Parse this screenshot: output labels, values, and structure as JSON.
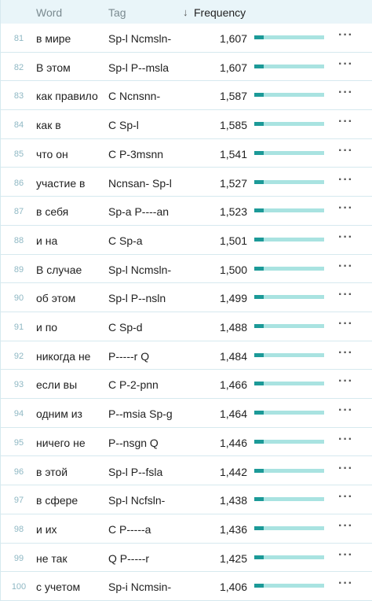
{
  "header": {
    "word": "Word",
    "tag": "Tag",
    "frequency": "Frequency"
  },
  "rows": [
    {
      "rank": "81",
      "word": "в мире",
      "tag": "Sp-l Ncmsln-",
      "frequency": "1,607"
    },
    {
      "rank": "82",
      "word": "В этом",
      "tag": "Sp-l P--msla",
      "frequency": "1,607"
    },
    {
      "rank": "83",
      "word": "как правило",
      "tag": "C Ncnsnn-",
      "frequency": "1,587"
    },
    {
      "rank": "84",
      "word": "как в",
      "tag": "C Sp-l",
      "frequency": "1,585"
    },
    {
      "rank": "85",
      "word": "что он",
      "tag": "C P-3msnn",
      "frequency": "1,541"
    },
    {
      "rank": "86",
      "word": "участие в",
      "tag": "Ncnsan- Sp-l",
      "frequency": "1,527"
    },
    {
      "rank": "87",
      "word": "в себя",
      "tag": "Sp-a P----an",
      "frequency": "1,523"
    },
    {
      "rank": "88",
      "word": "и на",
      "tag": "C Sp-a",
      "frequency": "1,501"
    },
    {
      "rank": "89",
      "word": "В случае",
      "tag": "Sp-l Ncmsln-",
      "frequency": "1,500"
    },
    {
      "rank": "90",
      "word": "об этом",
      "tag": "Sp-l P--nsln",
      "frequency": "1,499"
    },
    {
      "rank": "91",
      "word": "и по",
      "tag": "C Sp-d",
      "frequency": "1,488"
    },
    {
      "rank": "92",
      "word": "никогда не",
      "tag": "P-----r Q",
      "frequency": "1,484"
    },
    {
      "rank": "93",
      "word": "если вы",
      "tag": "C P-2-pnn",
      "frequency": "1,466"
    },
    {
      "rank": "94",
      "word": "одним из",
      "tag": "P--msia Sp-g",
      "frequency": "1,464"
    },
    {
      "rank": "95",
      "word": "ничего не",
      "tag": "P--nsgn Q",
      "frequency": "1,446"
    },
    {
      "rank": "96",
      "word": "в этой",
      "tag": "Sp-l P--fsla",
      "frequency": "1,442"
    },
    {
      "rank": "97",
      "word": "в сфере",
      "tag": "Sp-l Ncfsln-",
      "frequency": "1,438"
    },
    {
      "rank": "98",
      "word": "и их",
      "tag": "C P-----a",
      "frequency": "1,436"
    },
    {
      "rank": "99",
      "word": "не так",
      "tag": "Q P-----r",
      "frequency": "1,425"
    },
    {
      "rank": "100",
      "word": "с учетом",
      "tag": "Sp-i Ncmsin-",
      "frequency": "1,406"
    }
  ]
}
